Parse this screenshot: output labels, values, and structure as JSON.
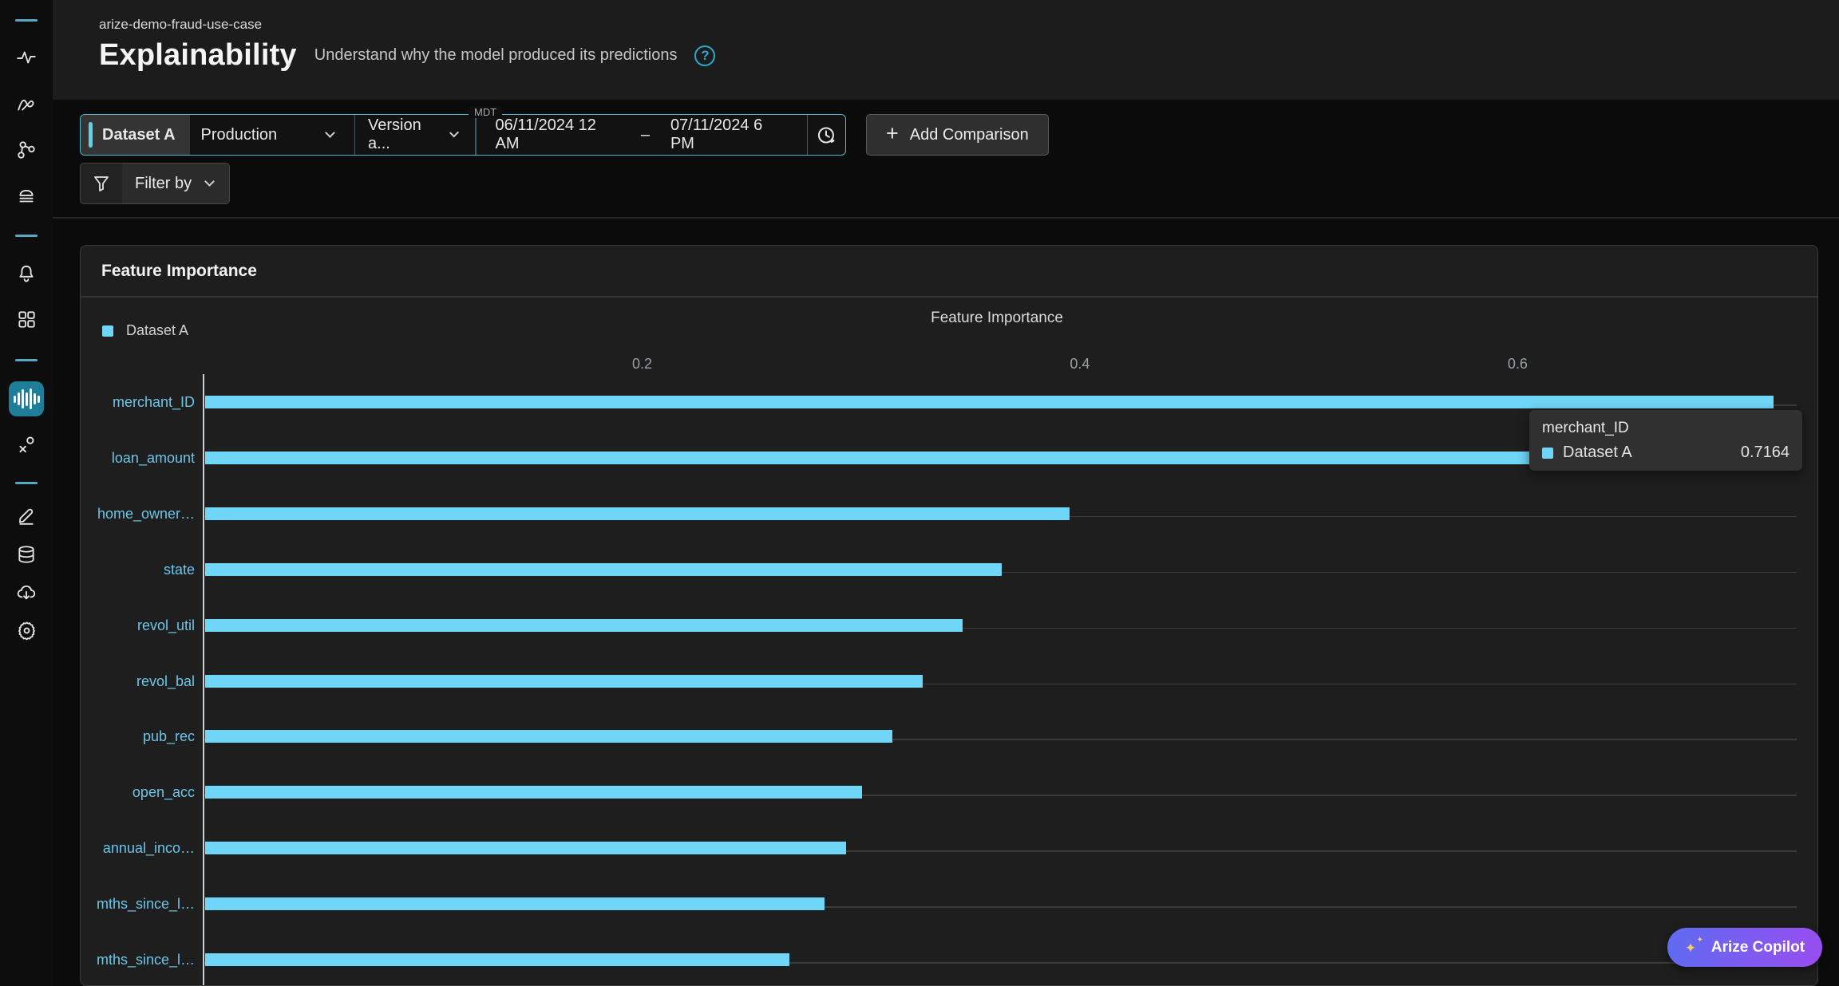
{
  "app": {
    "breadcrumb": "arize-demo-fraud-use-case",
    "page_title": "Explainability",
    "page_subtitle": "Understand why the model produced its predictions",
    "help_glyph": "?"
  },
  "sidebar": {
    "active_item": "explainability-waveform-icon",
    "items": [
      "activity-icon",
      "arize-mark-icon",
      "network-icon",
      "layers-icon",
      "bell-icon",
      "grid-icon",
      "explainability-waveform-icon",
      "scatter-x-icon",
      "pencil-icon",
      "database-icon",
      "cloud-download-icon",
      "gear-icon"
    ]
  },
  "toolbar": {
    "dataset_label": "Dataset A",
    "environment_value": "Production",
    "version_value": "Version a...",
    "timezone_label": "MDT",
    "date_start": "06/11/2024 12 AM",
    "date_separator": "–",
    "date_end": "07/11/2024 6 PM",
    "add_comparison_label": "Add Comparison",
    "add_comparison_plus": "+",
    "filter_label": "Filter by"
  },
  "card": {
    "title": "Feature Importance"
  },
  "chart_data": {
    "type": "bar",
    "orientation": "horizontal",
    "title": "Feature Importance",
    "series_name": "Dataset A",
    "categories": [
      "merchant_ID",
      "loan_amount",
      "home_owner…",
      "state",
      "revol_util",
      "revol_bal",
      "pub_rec",
      "open_acc",
      "annual_inco…",
      "mths_since_l…",
      "mths_since_l…"
    ],
    "values": [
      0.7164,
      0.62,
      0.395,
      0.364,
      0.346,
      0.328,
      0.314,
      0.3,
      0.293,
      0.283,
      0.267
    ],
    "xticks": [
      0.2,
      0.4,
      0.6
    ],
    "xlim": [
      0,
      0.7275
    ],
    "grid": true,
    "legend_position": "top-left",
    "bar_color": "#70D6F7",
    "label_color": "#6CC5E9"
  },
  "tooltip": {
    "feature": "merchant_ID",
    "series": "Dataset A",
    "value": "0.7164"
  },
  "copilot": {
    "label": "Arize Copilot",
    "icon": "sparkles-icon",
    "sparkle_main": "✦",
    "sparkle_small": "✦",
    "gradient": [
      "#5F6CF2",
      "#9A4DF0"
    ]
  },
  "colors": {
    "accent_teal": "#4FB9CF",
    "sidebar_active_bg": "#1E7D98",
    "bar": "#70D6F7",
    "header_bg": "#1C1C1C",
    "card_bg": "#1E1E1E"
  }
}
